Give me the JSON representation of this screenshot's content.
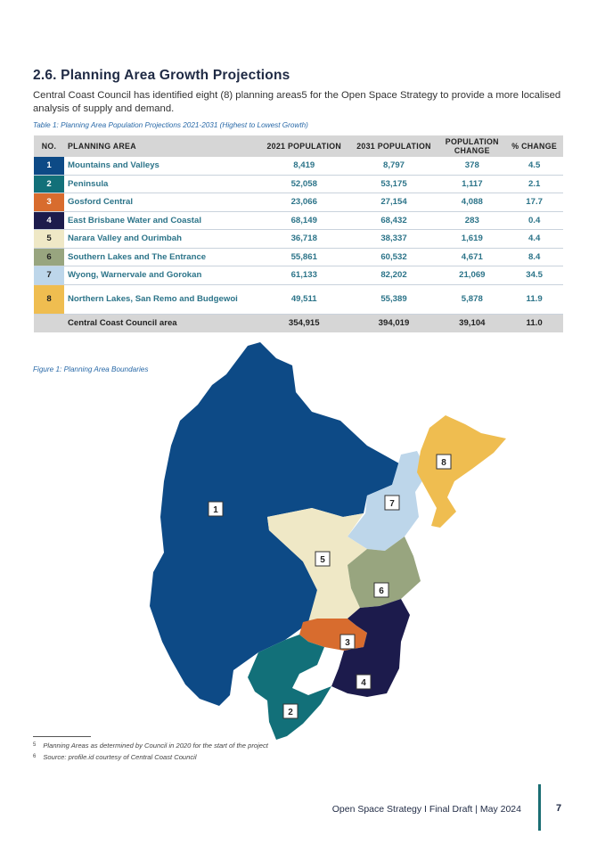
{
  "section": {
    "title": "2.6. Planning Area Growth Projections"
  },
  "intro": {
    "text": "Central Coast Council has identified eight (8) planning areas5 for the Open Space Strategy to provide a more localised analysis of supply and demand."
  },
  "table": {
    "caption": "Table 1: Planning Area Population Projections 2021-2031 (Highest to Lowest Growth)",
    "headers": {
      "no": "NO.",
      "area": "PLANNING AREA",
      "pop2021": "2021 POPULATION",
      "pop2031": "2031 POPULATION",
      "change_line1": "POPULATION",
      "change_line2": "CHANGE",
      "pct": "% CHANGE"
    },
    "rows": [
      {
        "no": "1",
        "area": "Mountains and Valleys",
        "pop2021": "8,419",
        "pop2031": "8,797",
        "change": "378",
        "pct": "4.5",
        "color": "#0d4a86"
      },
      {
        "no": "2",
        "area": "Peninsula",
        "pop2021": "52,058",
        "pop2031": "53,175",
        "change": "1,117",
        "pct": "2.1",
        "color": "#127079"
      },
      {
        "no": "3",
        "area": "Gosford Central",
        "pop2021": "23,066",
        "pop2031": "27,154",
        "change": "4,088",
        "pct": "17.7",
        "color": "#d86c2e"
      },
      {
        "no": "4",
        "area": "East Brisbane Water and Coastal",
        "pop2021": "68,149",
        "pop2031": "68,432",
        "change": "283",
        "pct": "0.4",
        "color": "#1c1b4c"
      },
      {
        "no": "5",
        "area": "Narara Valley and Ourimbah",
        "pop2021": "36,718",
        "pop2031": "38,337",
        "change": "1,619",
        "pct": "4.4",
        "color": "#efe8c6"
      },
      {
        "no": "6",
        "area": "Southern Lakes and The Entrance",
        "pop2021": "55,861",
        "pop2031": "60,532",
        "change": "4,671",
        "pct": "8.4",
        "color": "#98a57f"
      },
      {
        "no": "7",
        "area": "Wyong, Warnervale and Gorokan",
        "pop2021": "61,133",
        "pop2031": "82,202",
        "change": "21,069",
        "pct": "34.5",
        "color": "#bdd6ea"
      },
      {
        "no": "8",
        "area": "Northern Lakes, San Remo and Budgewoi",
        "pop2021": "49,511",
        "pop2031": "55,389",
        "change": "5,878",
        "pct": "11.9",
        "color": "#efbd50"
      }
    ],
    "total": {
      "area": "Central Coast Council area",
      "pop2021": "354,915",
      "pop2031": "394,019",
      "change": "39,104",
      "pct": "11.0"
    }
  },
  "figure": {
    "caption": "Figure 1: Planning Area Boundaries",
    "labels": [
      "1",
      "2",
      "3",
      "4",
      "5",
      "6",
      "7",
      "8"
    ]
  },
  "footnotes": [
    {
      "mark": "5",
      "text": "Planning Areas as determined by Council in 2020 for the start of the project"
    },
    {
      "mark": "6",
      "text": "Source: profile.id courtesy of Central Coast Council"
    }
  ],
  "footer": {
    "text": "Open Space Strategy I Final Draft | May 2024",
    "page": "7"
  }
}
